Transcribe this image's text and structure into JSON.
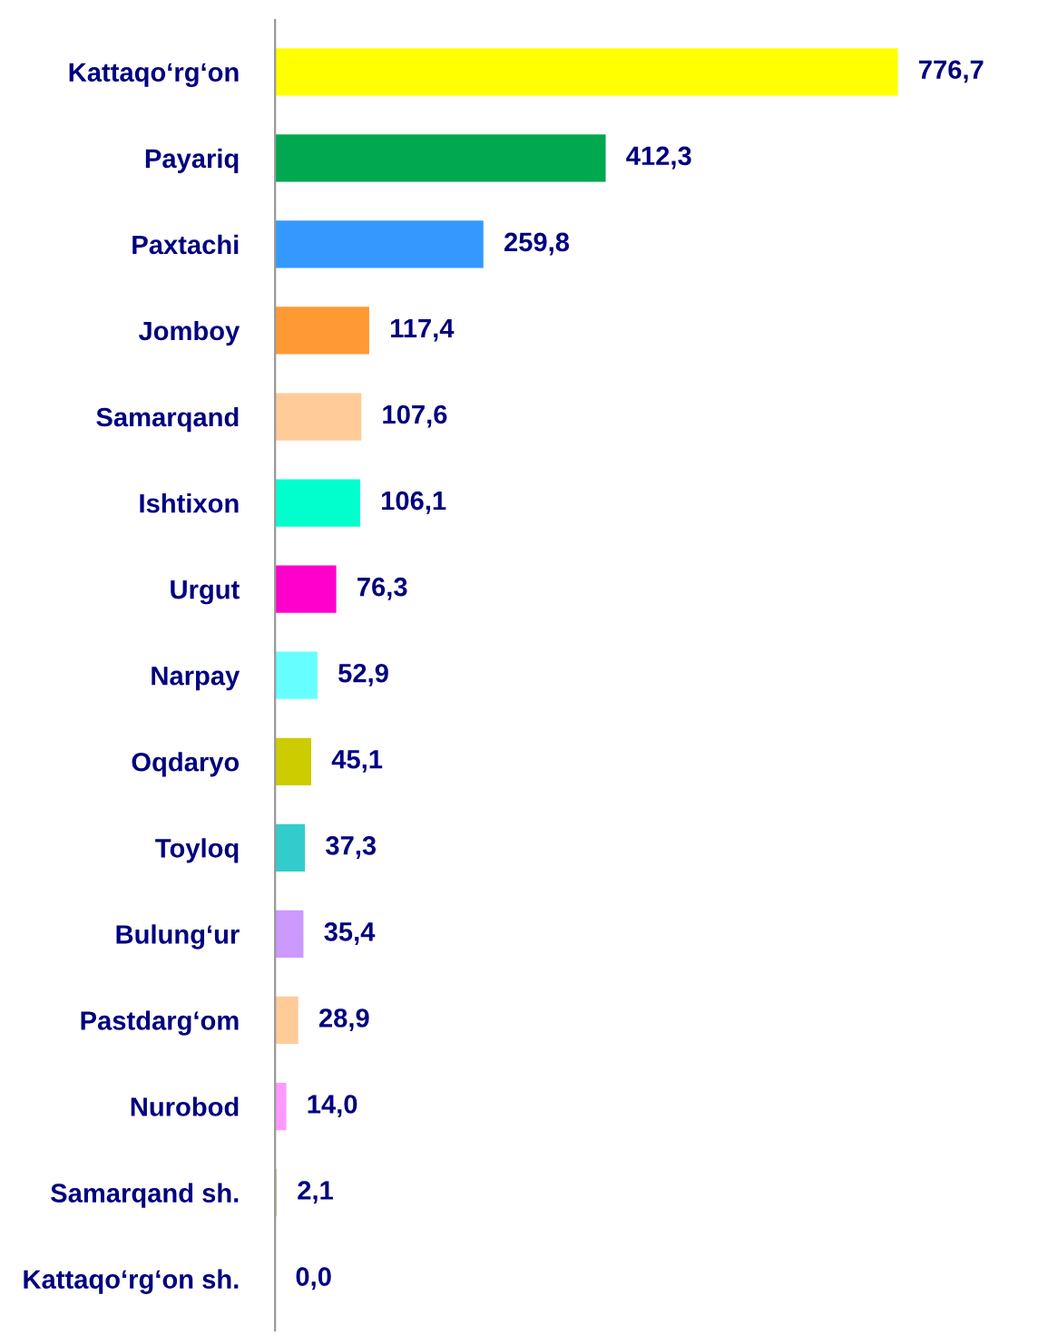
{
  "chart_data": {
    "type": "bar",
    "orientation": "horizontal",
    "data_labels": true,
    "grid": false,
    "legend": false,
    "tick_labels": "y",
    "categories": [
      "Kattaqo‘rg‘on",
      "Payariq",
      "Paxtachi",
      "Jomboy",
      "Samarqand",
      "Ishtixon",
      "Urgut",
      "Narpay",
      "Oqdaryo",
      "Toyloq",
      "Bulung‘ur",
      "Pastdarg‘om",
      "Nurobod",
      "Samarqand sh.",
      "Kattaqo‘rg‘on sh."
    ],
    "values": [
      776.7,
      412.3,
      259.8,
      117.4,
      107.6,
      106.1,
      76.3,
      52.9,
      45.1,
      37.3,
      35.4,
      28.9,
      14.0,
      2.1,
      0.0
    ],
    "value_labels": [
      "776,7",
      "412,3",
      "259,8",
      "117,4",
      "107,6",
      "106,1",
      "76,3",
      "52,9",
      "45,1",
      "37,3",
      "35,4",
      "28,9",
      "14,0",
      "2,1",
      "0,0"
    ],
    "colors": [
      "#ffff00",
      "#00a850",
      "#3399ff",
      "#ff9933",
      "#ffcc99",
      "#00ffcc",
      "#ff00cc",
      "#66ffff",
      "#cccc00",
      "#33cccc",
      "#cc99ff",
      "#ffcc99",
      "#ff99ff",
      "#cccc99",
      "#0099bb"
    ]
  }
}
